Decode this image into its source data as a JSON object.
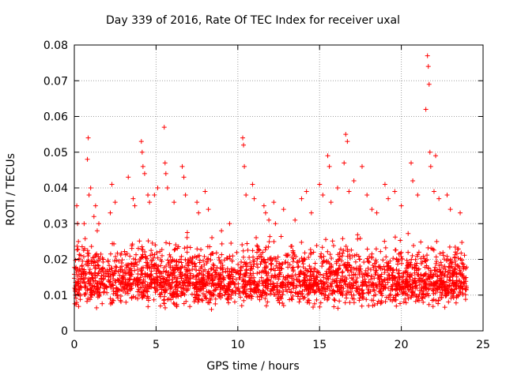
{
  "chart_data": {
    "type": "scatter",
    "title": "Day 339 of 2016, Rate Of TEC Index for receiver uxal",
    "xlabel": "GPS time / hours",
    "ylabel": "ROTI / TECUs",
    "xlim": [
      0,
      25
    ],
    "ylim": [
      0,
      0.08
    ],
    "xticks": [
      "0",
      "5",
      "10",
      "15",
      "20",
      "25"
    ],
    "yticks": [
      "0",
      "0.01",
      "0.02",
      "0.03",
      "0.04",
      "0.05",
      "0.06",
      "0.07",
      "0.08"
    ],
    "grid": true,
    "marker": "+",
    "color": "#ff0000",
    "series": [
      {
        "name": "ROTI",
        "x": [
          0.15,
          0.2,
          0.25,
          0.6,
          0.8,
          0.85,
          0.9,
          1.0,
          1.2,
          1.3,
          1.4,
          1.5,
          2.2,
          2.3,
          2.5,
          3.3,
          3.6,
          3.7,
          4.1,
          4.15,
          4.2,
          4.3,
          4.5,
          4.6,
          4.9,
          5.1,
          5.5,
          5.55,
          5.6,
          5.7,
          6.1,
          6.6,
          6.7,
          6.8,
          7.5,
          7.6,
          8.0,
          8.2,
          9.0,
          9.5,
          10.3,
          10.35,
          10.4,
          10.5,
          10.9,
          11.0,
          11.6,
          11.7,
          11.9,
          12.2,
          12.3,
          12.8,
          13.5,
          13.9,
          14.2,
          14.5,
          15.0,
          15.2,
          15.5,
          15.6,
          15.7,
          16.1,
          16.5,
          16.6,
          16.7,
          16.8,
          17.1,
          17.6,
          17.9,
          18.2,
          18.5,
          19.0,
          19.2,
          19.6,
          20.0,
          20.6,
          20.7,
          21.0,
          21.5,
          21.6,
          21.65,
          21.7,
          21.75,
          21.8,
          22.0,
          22.1,
          22.3,
          22.8,
          23.0,
          23.6
        ],
        "y": [
          0.035,
          0.03,
          0.025,
          0.03,
          0.048,
          0.054,
          0.038,
          0.04,
          0.032,
          0.035,
          0.028,
          0.03,
          0.033,
          0.041,
          0.036,
          0.043,
          0.037,
          0.035,
          0.053,
          0.05,
          0.046,
          0.044,
          0.038,
          0.036,
          0.038,
          0.04,
          0.057,
          0.047,
          0.044,
          0.04,
          0.036,
          0.046,
          0.043,
          0.038,
          0.036,
          0.033,
          0.039,
          0.034,
          0.028,
          0.03,
          0.054,
          0.052,
          0.046,
          0.038,
          0.041,
          0.037,
          0.035,
          0.033,
          0.031,
          0.036,
          0.03,
          0.034,
          0.031,
          0.037,
          0.039,
          0.033,
          0.041,
          0.038,
          0.049,
          0.046,
          0.036,
          0.04,
          0.047,
          0.055,
          0.053,
          0.039,
          0.042,
          0.046,
          0.038,
          0.034,
          0.033,
          0.041,
          0.037,
          0.039,
          0.035,
          0.047,
          0.042,
          0.038,
          0.062,
          0.077,
          0.074,
          0.069,
          0.05,
          0.046,
          0.039,
          0.049,
          0.037,
          0.038,
          0.034,
          0.033
        ]
      }
    ],
    "dense_band": {
      "x_range": [
        0,
        24
      ],
      "y_low": 0.005,
      "y_center": 0.014,
      "y_high": 0.028
    }
  }
}
